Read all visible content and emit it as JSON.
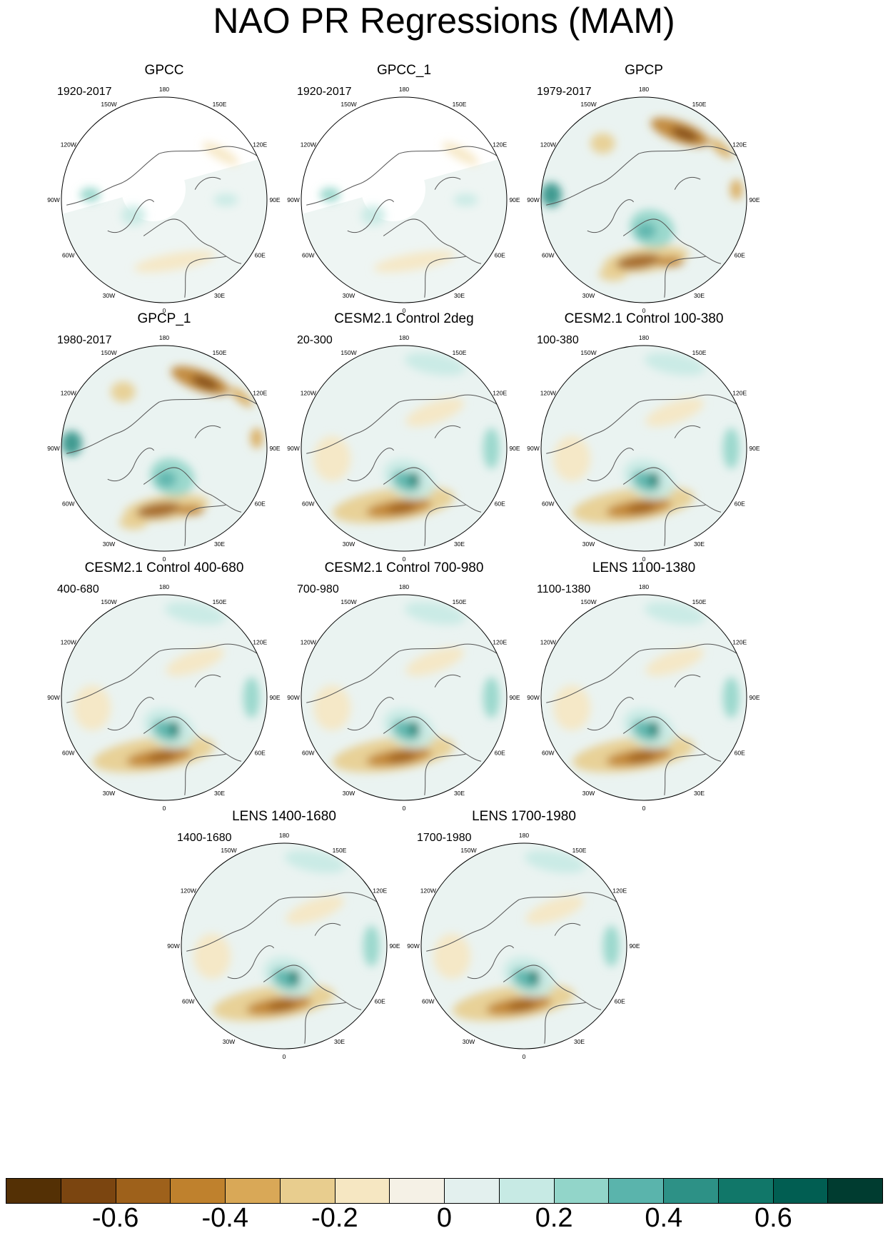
{
  "figure": {
    "title": "NAO PR Regressions (MAM)"
  },
  "panels": [
    {
      "title": "GPCC",
      "period": "1920-2017",
      "style": "land"
    },
    {
      "title": "GPCC_1",
      "period": "1920-2017",
      "style": "land"
    },
    {
      "title": "GPCP",
      "period": "1979-2017",
      "style": "obs"
    },
    {
      "title": "GPCP_1",
      "period": "1980-2017",
      "style": "obs"
    },
    {
      "title": "CESM2.1 Control 2deg",
      "period": "20-300",
      "style": "model"
    },
    {
      "title": "CESM2.1 Control 100-380",
      "period": "100-380",
      "style": "model"
    },
    {
      "title": "CESM2.1 Control 400-680",
      "period": "400-680",
      "style": "model"
    },
    {
      "title": "CESM2.1 Control 700-980",
      "period": "700-980",
      "style": "model"
    },
    {
      "title": "LENS 1100-1380",
      "period": "1100-1380",
      "style": "model"
    },
    {
      "title": "LENS 1400-1680",
      "period": "1400-1680",
      "style": "model"
    },
    {
      "title": "LENS 1700-1980",
      "period": "1700-1980",
      "style": "model"
    }
  ],
  "longitude_labels": [
    "180",
    "150E",
    "120E",
    "90E",
    "60E",
    "30E",
    "0",
    "30W",
    "60W",
    "90W",
    "120W",
    "150W"
  ],
  "colorbar": {
    "colors": [
      "#543005",
      "#7b4510",
      "#9e611b",
      "#bf812d",
      "#d9a857",
      "#e8cd8e",
      "#f6e7c2",
      "#f5f1e6",
      "#e3f0ee",
      "#c7eae4",
      "#92d5c9",
      "#5ab4ac",
      "#2d9186",
      "#117769",
      "#015e52",
      "#003c30"
    ],
    "labels": [
      "-0.6",
      "-0.4",
      "-0.2",
      "0",
      "0.2",
      "0.4",
      "0.6"
    ]
  }
}
